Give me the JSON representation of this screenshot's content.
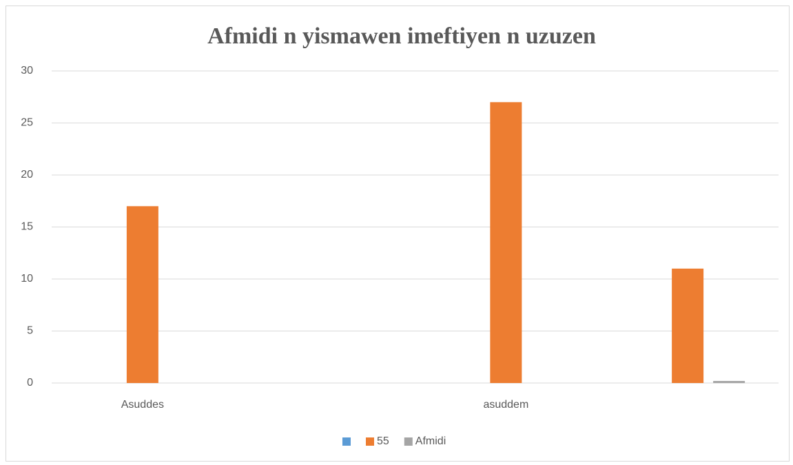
{
  "chart_data": {
    "type": "bar",
    "title": "Afmidi n yismawen imeftiyen n uzuzen",
    "categories": [
      "Asuddes",
      null,
      "asuddem",
      null
    ],
    "series": [
      {
        "color": "#5b9bd5",
        "values": [
          null,
          null,
          null,
          null
        ]
      },
      {
        "name": "55",
        "color": "#ed7d31",
        "values": [
          17,
          null,
          27,
          11
        ]
      },
      {
        "name": "Afmidi",
        "color": "#a5a5a5",
        "values": [
          null,
          null,
          null,
          0.2
        ]
      }
    ],
    "ylim": [
      0,
      30
    ],
    "yticks": [
      0,
      5,
      10,
      15,
      20,
      25,
      30
    ],
    "grid": true,
    "legend": "bottom"
  }
}
